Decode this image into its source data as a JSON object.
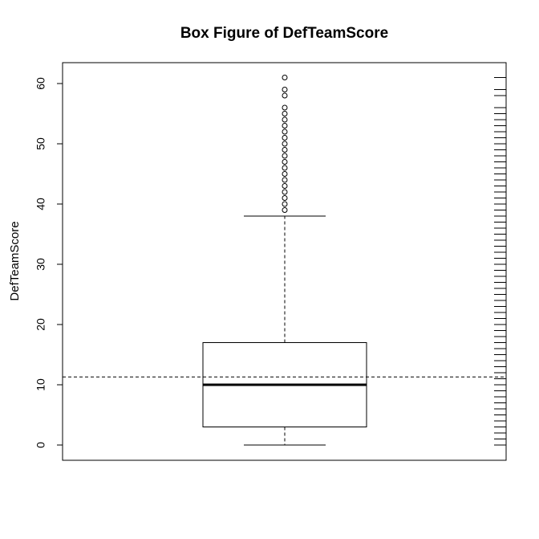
{
  "chart_data": {
    "type": "box",
    "title": "Box Figure of DefTeamScore",
    "xlabel": "",
    "ylabel": "DefTeamScore",
    "ylim": [
      -2.5,
      63.5
    ],
    "yticks": [
      0,
      10,
      20,
      30,
      40,
      50,
      60
    ],
    "series": [
      {
        "name": "DefTeamScore",
        "min": 0,
        "q1": 3,
        "median": 10,
        "q3": 17,
        "whisker_high": 38,
        "outliers": [
          39,
          40,
          41,
          42,
          43,
          44,
          45,
          46,
          47,
          48,
          49,
          50,
          51,
          52,
          53,
          54,
          55,
          56,
          58,
          59,
          61
        ]
      }
    ],
    "mean_line": 11.3,
    "rug_values": [
      0,
      1,
      2,
      3,
      4,
      5,
      6,
      7,
      8,
      9,
      10,
      11,
      12,
      13,
      14,
      15,
      16,
      17,
      18,
      19,
      20,
      21,
      22,
      23,
      24,
      25,
      26,
      27,
      28,
      29,
      30,
      31,
      32,
      33,
      34,
      35,
      36,
      37,
      38,
      39,
      40,
      41,
      42,
      43,
      44,
      45,
      46,
      47,
      48,
      49,
      50,
      51,
      52,
      53,
      54,
      55,
      56,
      58,
      59,
      61
    ],
    "grid": false,
    "legend": "none"
  }
}
